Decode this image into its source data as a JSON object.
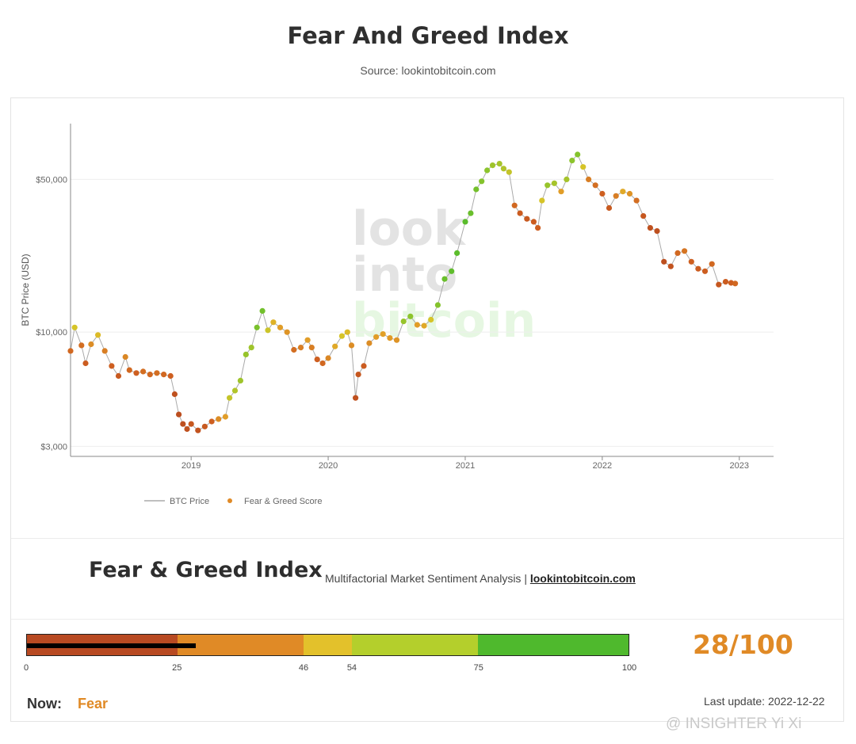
{
  "header": {
    "title": "Fear And Greed Index",
    "subtitle": "Source: lookintobitcoin.com"
  },
  "chart_data": {
    "type": "scatter",
    "scale": "log",
    "ylabel": "BTC Price (USD)",
    "y_ticks": [
      {
        "value": 3000,
        "label": "$3,000"
      },
      {
        "value": 10000,
        "label": "$10,000"
      },
      {
        "value": 50000,
        "label": "$50,000"
      }
    ],
    "x_ticks": [
      {
        "value": 2019,
        "label": "2019"
      },
      {
        "value": 2020,
        "label": "2020"
      },
      {
        "value": 2021,
        "label": "2021"
      },
      {
        "value": 2022,
        "label": "2022"
      },
      {
        "value": 2023,
        "label": "2023"
      }
    ],
    "xlim": [
      2018.12,
      2023.25
    ],
    "ylim": [
      2700,
      90000
    ],
    "grid": true,
    "legend_position": "bottom-left",
    "legend": [
      "BTC Price",
      "Fear & Greed Score"
    ],
    "watermark": [
      "look",
      "into",
      "bitcoin"
    ],
    "series": [
      {
        "name": "BTC Price",
        "points": [
          [
            2018.12,
            8200,
            28
          ],
          [
            2018.15,
            10500,
            55
          ],
          [
            2018.2,
            8700,
            30
          ],
          [
            2018.23,
            7200,
            22
          ],
          [
            2018.27,
            8800,
            40
          ],
          [
            2018.32,
            9700,
            52
          ],
          [
            2018.37,
            8200,
            35
          ],
          [
            2018.42,
            7000,
            25
          ],
          [
            2018.47,
            6300,
            20
          ],
          [
            2018.52,
            7700,
            38
          ],
          [
            2018.55,
            6700,
            28
          ],
          [
            2018.6,
            6500,
            25
          ],
          [
            2018.65,
            6600,
            30
          ],
          [
            2018.7,
            6400,
            28
          ],
          [
            2018.75,
            6500,
            30
          ],
          [
            2018.8,
            6400,
            28
          ],
          [
            2018.85,
            6300,
            25
          ],
          [
            2018.88,
            5200,
            12
          ],
          [
            2018.91,
            4200,
            9
          ],
          [
            2018.94,
            3800,
            10
          ],
          [
            2018.97,
            3600,
            12
          ],
          [
            2019.0,
            3800,
            18
          ],
          [
            2019.05,
            3550,
            14
          ],
          [
            2019.1,
            3700,
            20
          ],
          [
            2019.15,
            3900,
            25
          ],
          [
            2019.2,
            4000,
            40
          ],
          [
            2019.25,
            4100,
            45
          ],
          [
            2019.28,
            5000,
            60
          ],
          [
            2019.32,
            5400,
            65
          ],
          [
            2019.36,
            6000,
            70
          ],
          [
            2019.4,
            7900,
            72
          ],
          [
            2019.44,
            8500,
            70
          ],
          [
            2019.48,
            10500,
            82
          ],
          [
            2019.52,
            12500,
            85
          ],
          [
            2019.56,
            10200,
            58
          ],
          [
            2019.6,
            11100,
            50
          ],
          [
            2019.65,
            10500,
            45
          ],
          [
            2019.7,
            10000,
            42
          ],
          [
            2019.75,
            8300,
            30
          ],
          [
            2019.8,
            8500,
            35
          ],
          [
            2019.85,
            9200,
            45
          ],
          [
            2019.88,
            8500,
            35
          ],
          [
            2019.92,
            7500,
            25
          ],
          [
            2019.96,
            7200,
            28
          ],
          [
            2020.0,
            7600,
            38
          ],
          [
            2020.05,
            8600,
            48
          ],
          [
            2020.1,
            9600,
            55
          ],
          [
            2020.14,
            10000,
            52
          ],
          [
            2020.17,
            8700,
            40
          ],
          [
            2020.2,
            5000,
            12
          ],
          [
            2020.22,
            6400,
            18
          ],
          [
            2020.26,
            7000,
            22
          ],
          [
            2020.3,
            8900,
            40
          ],
          [
            2020.35,
            9500,
            45
          ],
          [
            2020.4,
            9800,
            46
          ],
          [
            2020.45,
            9400,
            44
          ],
          [
            2020.5,
            9200,
            42
          ],
          [
            2020.55,
            11200,
            72
          ],
          [
            2020.6,
            11800,
            75
          ],
          [
            2020.65,
            10800,
            45
          ],
          [
            2020.7,
            10700,
            48
          ],
          [
            2020.75,
            11400,
            55
          ],
          [
            2020.8,
            13300,
            78
          ],
          [
            2020.85,
            17500,
            88
          ],
          [
            2020.9,
            19000,
            92
          ],
          [
            2020.94,
            23000,
            93
          ],
          [
            2021.0,
            32000,
            94
          ],
          [
            2021.04,
            35000,
            88
          ],
          [
            2021.08,
            45000,
            84
          ],
          [
            2021.12,
            49000,
            78
          ],
          [
            2021.16,
            55000,
            75
          ],
          [
            2021.2,
            58000,
            70
          ],
          [
            2021.25,
            59000,
            68
          ],
          [
            2021.28,
            56000,
            65
          ],
          [
            2021.32,
            54000,
            60
          ],
          [
            2021.36,
            38000,
            28
          ],
          [
            2021.4,
            35000,
            22
          ],
          [
            2021.45,
            33000,
            20
          ],
          [
            2021.5,
            32000,
            22
          ],
          [
            2021.53,
            30000,
            24
          ],
          [
            2021.56,
            40000,
            55
          ],
          [
            2021.6,
            47000,
            72
          ],
          [
            2021.65,
            48000,
            68
          ],
          [
            2021.7,
            44000,
            45
          ],
          [
            2021.74,
            50000,
            68
          ],
          [
            2021.78,
            61000,
            75
          ],
          [
            2021.82,
            65000,
            78
          ],
          [
            2021.86,
            57000,
            55
          ],
          [
            2021.9,
            50000,
            35
          ],
          [
            2021.95,
            47000,
            30
          ],
          [
            2022.0,
            43000,
            25
          ],
          [
            2022.05,
            37000,
            20
          ],
          [
            2022.1,
            42000,
            35
          ],
          [
            2022.15,
            44000,
            48
          ],
          [
            2022.2,
            43000,
            42
          ],
          [
            2022.25,
            40000,
            30
          ],
          [
            2022.3,
            34000,
            18
          ],
          [
            2022.35,
            30000,
            12
          ],
          [
            2022.4,
            29000,
            10
          ],
          [
            2022.45,
            21000,
            10
          ],
          [
            2022.5,
            20000,
            14
          ],
          [
            2022.55,
            23000,
            28
          ],
          [
            2022.6,
            23500,
            32
          ],
          [
            2022.65,
            21000,
            25
          ],
          [
            2022.7,
            19500,
            22
          ],
          [
            2022.75,
            19000,
            24
          ],
          [
            2022.8,
            20500,
            28
          ],
          [
            2022.85,
            16500,
            18
          ],
          [
            2022.9,
            17000,
            22
          ],
          [
            2022.94,
            16800,
            24
          ],
          [
            2022.97,
            16700,
            28
          ]
        ]
      }
    ]
  },
  "index_panel": {
    "heading": "Fear & Greed Index",
    "tagline": "Multifactorial Market Sentiment Analysis | ",
    "tagline_link": "lookintobitcoin.com",
    "gauge": {
      "segments": [
        {
          "from": 0,
          "to": 25,
          "color": "#b84a22"
        },
        {
          "from": 25,
          "to": 46,
          "color": "#e08a26"
        },
        {
          "from": 46,
          "to": 54,
          "color": "#e3c12b"
        },
        {
          "from": 54,
          "to": 75,
          "color": "#b4cf2c"
        },
        {
          "from": 75,
          "to": 100,
          "color": "#4fb92d"
        }
      ],
      "ticks": [
        "0",
        "25",
        "46",
        "54",
        "75",
        "100"
      ],
      "value": 28
    },
    "score_text": "28/100",
    "score_color": "#e08a26",
    "now_label": "Now:",
    "now_value": "Fear",
    "last_update": "Last update: 2022-12-22"
  },
  "credit": "@ INSIGHTER Yi Xi"
}
